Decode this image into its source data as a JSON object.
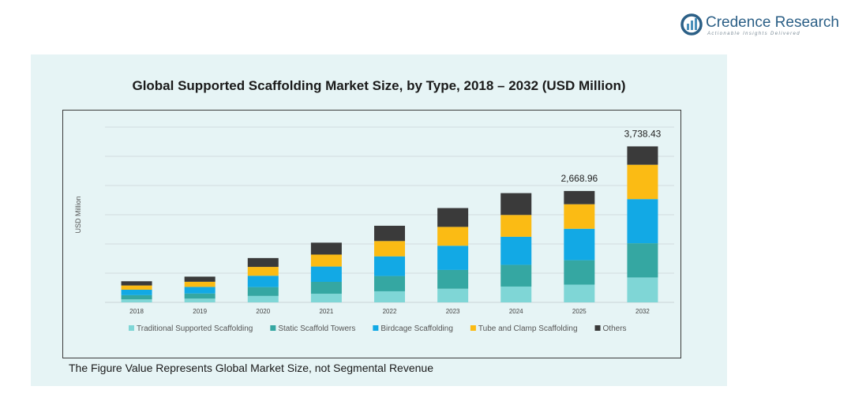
{
  "brand": {
    "name": "Credence Research",
    "tagline": "Actionable Insights Delivered",
    "colors": {
      "primary": "#2b5f86"
    }
  },
  "footnote": "The Figure Value Represents Global Market Size, not Segmental Revenue",
  "chart_data": {
    "type": "bar",
    "stacked": true,
    "title": "Global Supported Scaffolding Market Size, by Type, 2018 – 2032 (USD Million)",
    "xlabel": "",
    "ylabel": "USD Million",
    "ylim": [
      0,
      4200
    ],
    "grid": true,
    "legend_position": "bottom",
    "categories": [
      "2018",
      "2019",
      "2020",
      "2021",
      "2022",
      "2023",
      "2024",
      "2025",
      "2032"
    ],
    "series": [
      {
        "name": "Traditional Supported Scaffolding",
        "color": "#7fd6d6",
        "values": [
          72,
          90,
          154,
          207,
          266,
          327,
          379,
          425,
          597
        ]
      },
      {
        "name": "Static Scaffold Towers",
        "color": "#35a7a2",
        "values": [
          101,
          123,
          212,
          285,
          366,
          450,
          521,
          585,
          820
        ]
      },
      {
        "name": "Birdcage Scaffolding",
        "color": "#12a9e5",
        "values": [
          130,
          158,
          272,
          367,
          471,
          580,
          672,
          754,
          1058
        ]
      },
      {
        "name": "Tube and Clamp Scaffolding",
        "color": "#fbbb14",
        "values": [
          102,
          123,
          212,
          286,
          367,
          452,
          523,
          588,
          823
        ]
      },
      {
        "name": "Others",
        "color": "#3a3a3a",
        "values": [
          101,
          123,
          212,
          286,
          366,
          451,
          523,
          317,
          440
        ]
      }
    ],
    "data_labels": [
      {
        "category": "2025",
        "text": "2,668.96"
      },
      {
        "category": "2032",
        "text": "3,738.43"
      }
    ]
  }
}
